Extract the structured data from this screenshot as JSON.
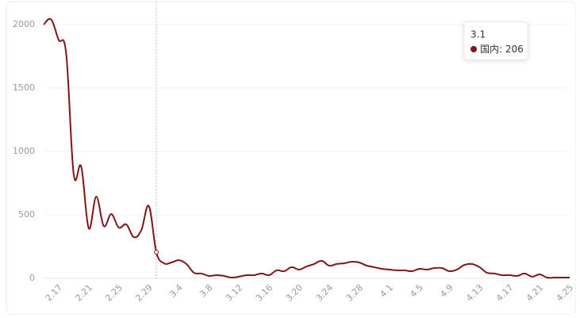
{
  "chart_data": {
    "type": "line",
    "categories": [
      null,
      null,
      "2.17",
      null,
      null,
      null,
      "2.21",
      null,
      null,
      null,
      "2.25",
      null,
      null,
      null,
      "2.29",
      null,
      null,
      null,
      "3.4",
      null,
      null,
      null,
      "3.8",
      null,
      null,
      null,
      "3.12",
      null,
      null,
      null,
      "3.16",
      null,
      null,
      null,
      "3.20",
      null,
      null,
      null,
      "3.24",
      null,
      null,
      null,
      "3.28",
      null,
      null,
      null,
      "4.1",
      null,
      null,
      null,
      "4.5",
      null,
      null,
      null,
      "4.9",
      null,
      null,
      null,
      "4.13",
      null,
      null,
      null,
      "4.17",
      null,
      null,
      null,
      "4.21",
      null,
      null,
      null,
      "4.25"
    ],
    "series": [
      {
        "name": "国内",
        "color": "#7f1518",
        "values": [
          2000,
          2040,
          1880,
          1770,
          820,
          880,
          394,
          644,
          412,
          506,
          400,
          425,
          325,
          380,
          570,
          206,
          119,
          125,
          143,
          113,
          44,
          38,
          19,
          25,
          19,
          6,
          13,
          25,
          25,
          38,
          25,
          63,
          56,
          88,
          69,
          94,
          113,
          138,
          100,
          113,
          119,
          131,
          125,
          100,
          88,
          75,
          69,
          63,
          63,
          56,
          75,
          69,
          81,
          81,
          56,
          69,
          106,
          113,
          88,
          44,
          38,
          25,
          25,
          19,
          38,
          13,
          31,
          6,
          6,
          6,
          6
        ]
      }
    ],
    "ylim": [
      0,
      2000
    ],
    "yticks": [
      0,
      500,
      1000,
      1500,
      2000
    ],
    "grid": true,
    "tooltip": {
      "category": "3.1",
      "index": 15
    }
  }
}
